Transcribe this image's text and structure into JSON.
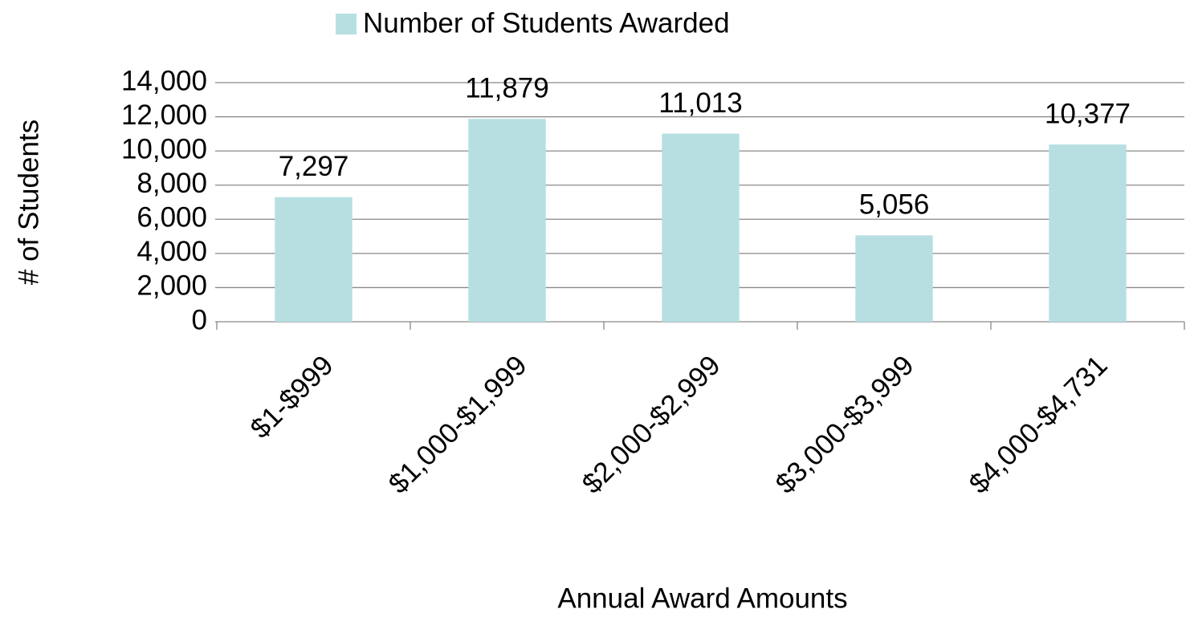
{
  "chart_data": {
    "type": "bar",
    "legend": "Number of Students Awarded",
    "x_label": "Annual Award Amounts",
    "y_label": "# of Students",
    "categories": [
      "$1-$999",
      "$1,000-$1,999",
      "$2,000-$2,999",
      "$3,000-$3,999",
      "$4,000-$4,731"
    ],
    "values": [
      7297,
      11879,
      11013,
      5056,
      10377
    ],
    "value_labels": [
      "7,297",
      "11,879",
      "11,013",
      "5,056",
      "10,377"
    ],
    "color": "#b7dfe2",
    "ylim": [
      0,
      14000
    ],
    "yticks": [
      0,
      {
        "value": 2000,
        "label": "2,000"
      },
      {
        "value": 4000,
        "label": "4,000"
      },
      {
        "value": 6000,
        "label": "6,000"
      },
      {
        "value": 8000,
        "label": "8,000"
      },
      {
        "value": 10000,
        "label": "10,000"
      },
      {
        "value": 12000,
        "label": "12,000"
      },
      {
        "value": 14000,
        "label": "14,000"
      }
    ],
    "grid": true
  }
}
